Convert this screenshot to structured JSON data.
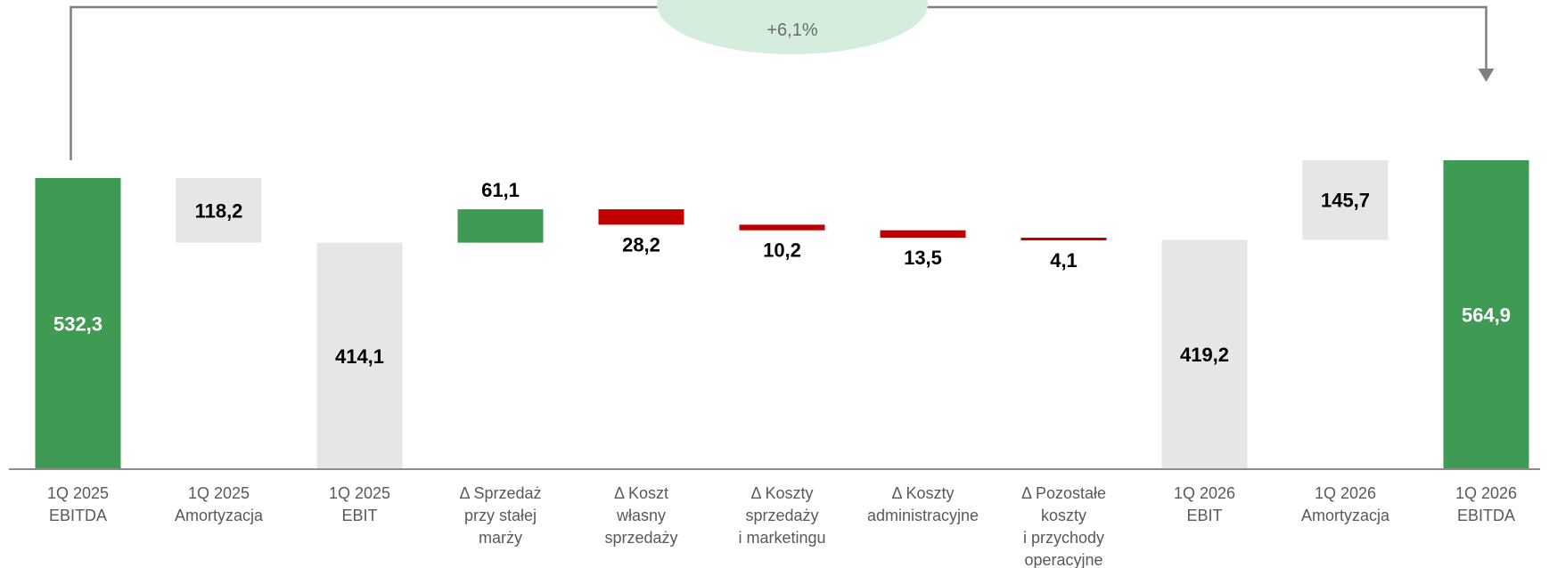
{
  "chart_data": {
    "type": "waterfall",
    "title": "",
    "xlabel": "",
    "ylabel": "",
    "ylim": [
      0,
      620
    ],
    "grid": false,
    "legend": "none",
    "colors": {
      "total": "#3f9b53",
      "increase": "#3f9b53",
      "decrease": "#c00000",
      "depreciation": "#e6e6e6",
      "ebit": "#e6e6e6",
      "growth_bubble": "#d4eddc",
      "connector": "#7f7f7f",
      "baseline": "#8c8c8c"
    },
    "categories": [
      [
        "1Q 2025",
        "EBITDA"
      ],
      [
        "1Q 2025",
        "Amortyzacja"
      ],
      [
        "1Q 2025",
        "EBIT"
      ],
      [
        "Δ Sprzedaż",
        "przy stałej",
        "marży"
      ],
      [
        "Δ Koszt",
        "własny",
        "sprzedaży"
      ],
      [
        "Δ Koszty",
        "sprzedaży",
        "i marketingu"
      ],
      [
        "Δ Koszty",
        "administracyjne"
      ],
      [
        "Δ Pozostałe",
        "koszty",
        "i przychody",
        "operacyjne"
      ],
      [
        "1Q 2026",
        "EBIT"
      ],
      [
        "1Q 2026",
        "Amortyzacja"
      ],
      [
        "1Q 2026",
        "EBITDA"
      ]
    ],
    "bars": [
      {
        "label": "532,3",
        "value": 532.3,
        "start": 0,
        "end": 532.3,
        "kind": "total"
      },
      {
        "label": "118,2",
        "value": -118.2,
        "start": 532.3,
        "end": 414.1,
        "kind": "depreciation"
      },
      {
        "label": "414,1",
        "value": 414.1,
        "start": 0,
        "end": 414.1,
        "kind": "ebit"
      },
      {
        "label": "61,1",
        "value": 61.1,
        "start": 414.1,
        "end": 475.2,
        "kind": "increase"
      },
      {
        "label": "28,2",
        "value": -28.2,
        "start": 475.2,
        "end": 447.0,
        "kind": "decrease"
      },
      {
        "label": "10,2",
        "value": -10.2,
        "start": 447.0,
        "end": 436.8,
        "kind": "decrease"
      },
      {
        "label": "13,5",
        "value": -13.5,
        "start": 436.8,
        "end": 423.3,
        "kind": "decrease"
      },
      {
        "label": "4,1",
        "value": -4.1,
        "start": 423.3,
        "end": 419.2,
        "kind": "decrease"
      },
      {
        "label": "419,2",
        "value": 419.2,
        "start": 0,
        "end": 419.2,
        "kind": "ebit"
      },
      {
        "label": "145,7",
        "value": 145.7,
        "start": 419.2,
        "end": 564.9,
        "kind": "depreciation"
      },
      {
        "label": "564,9",
        "value": 564.9,
        "start": 0,
        "end": 564.9,
        "kind": "total"
      }
    ],
    "annotations": [
      {
        "text": "+6,1%",
        "from_index": 0,
        "to_index": 10
      }
    ]
  }
}
